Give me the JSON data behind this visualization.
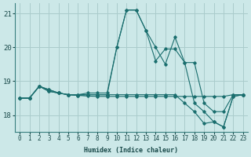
{
  "xlabel": "Humidex (Indice chaleur)",
  "background_color": "#cce8e8",
  "grid_color": "#aacccc",
  "line_color": "#1a6e6e",
  "xlim": [
    -0.5,
    23.5
  ],
  "ylim": [
    17.5,
    21.3
  ],
  "yticks": [
    18,
    19,
    20,
    21
  ],
  "xticks": [
    0,
    1,
    2,
    3,
    4,
    5,
    6,
    7,
    8,
    9,
    10,
    11,
    12,
    13,
    14,
    15,
    16,
    17,
    18,
    19,
    20,
    21,
    22,
    23
  ],
  "series": [
    [
      18.5,
      18.5,
      18.85,
      18.7,
      18.65,
      18.6,
      18.58,
      18.56,
      18.55,
      18.55,
      18.55,
      18.55,
      18.55,
      18.55,
      18.55,
      18.55,
      18.55,
      18.55,
      18.55,
      18.55,
      18.55,
      18.55,
      18.6,
      18.6
    ],
    [
      18.5,
      18.5,
      18.85,
      18.7,
      18.65,
      18.6,
      18.58,
      18.6,
      18.6,
      18.6,
      20.0,
      21.1,
      21.1,
      20.5,
      20.0,
      19.5,
      20.3,
      19.55,
      19.55,
      18.35,
      18.1,
      18.1,
      18.6,
      18.6
    ],
    [
      18.5,
      18.5,
      18.85,
      18.75,
      18.65,
      18.6,
      18.6,
      18.6,
      18.6,
      18.6,
      18.6,
      18.6,
      18.6,
      18.6,
      18.6,
      18.6,
      18.6,
      18.35,
      18.1,
      17.75,
      17.8,
      17.65,
      18.55,
      18.6
    ],
    [
      18.5,
      18.5,
      18.85,
      18.75,
      18.65,
      18.6,
      18.6,
      18.65,
      18.65,
      18.65,
      20.0,
      21.1,
      21.1,
      20.5,
      19.6,
      19.95,
      19.95,
      19.55,
      18.35,
      18.1,
      17.8,
      17.65,
      18.55,
      18.6
    ]
  ]
}
